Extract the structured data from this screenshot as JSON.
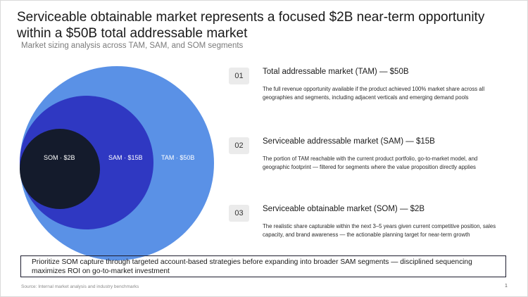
{
  "title": "Serviceable obtainable market represents a focused $2B near-term opportunity within a $50B total addressable market",
  "subtitle": "Market sizing analysis across TAM, SAM, and SOM segments",
  "diagram": {
    "tam_label": "TAM · $50B",
    "sam_label": "SAM · $15B",
    "som_label": "SOM · $2B",
    "colors": {
      "tam": "#5a91e6",
      "sam": "#2f38c2",
      "som": "#141b2c"
    }
  },
  "items": [
    {
      "number": "01",
      "heading": "Total addressable market (TAM) — $50B",
      "description": "The full revenue opportunity available if the product achieved 100% market share across all geographies and segments, including adjacent verticals and emerging demand pools"
    },
    {
      "number": "02",
      "heading": "Serviceable addressable market (SAM) — $15B",
      "description": "The portion of TAM reachable with the current product portfolio, go-to-market model, and geographic footprint — filtered for segments where the value proposition directly applies"
    },
    {
      "number": "03",
      "heading": "Serviceable obtainable market (SOM) — $2B",
      "description": "The realistic share capturable within the next 3–5 years given current competitive position, sales capacity, and brand awareness — the actionable planning target for near-term growth"
    }
  ],
  "callout": "Prioritize SOM capture through targeted account-based strategies before expanding into broader SAM segments — disciplined sequencing maximizes ROI on go-to-market investment",
  "source": "Source: Internal market analysis and industry benchmarks",
  "page_number": "1"
}
